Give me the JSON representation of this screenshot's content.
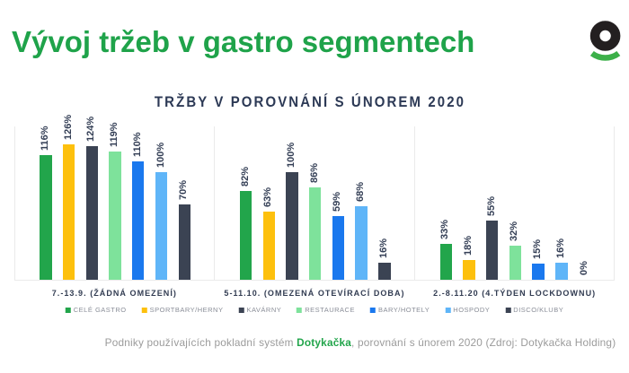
{
  "header": {
    "title": "Vývoj tržeb v gastro segmentech"
  },
  "logo": {
    "name": "dotykacka-logo",
    "ring_color": "#231f20",
    "arc_color": "#3cb049"
  },
  "chart_data": {
    "type": "bar",
    "title": "TRŽBY V POROVNÁNÍ S ÚNOREM 2020",
    "value_suffix": "%",
    "ylim": [
      0,
      142
    ],
    "grid": false,
    "legend_position": "bottom",
    "categories": [
      "7.-13.9. (ŽÁDNÁ OMEZENÍ)",
      "5-11.10. (OMEZENÁ OTEVÍRACÍ DOBA)",
      "2.-8.11.20 (4.TÝDEN LOCKDOWNU)"
    ],
    "series": [
      {
        "name": "CELÉ GASTRO",
        "color": "#22a54b",
        "values": [
          116,
          82,
          33
        ]
      },
      {
        "name": "SPORTBARY/HERNY",
        "color": "#fdc00d",
        "values": [
          126,
          63,
          18
        ]
      },
      {
        "name": "KAVÁRNY",
        "color": "#3b4353",
        "values": [
          124,
          100,
          55
        ]
      },
      {
        "name": "RESTAURACE",
        "color": "#7ee29b",
        "values": [
          119,
          86,
          32
        ]
      },
      {
        "name": "BARY/HOTELY",
        "color": "#1a78ee",
        "values": [
          110,
          59,
          15
        ]
      },
      {
        "name": "HOSPODY",
        "color": "#5fb5f8",
        "values": [
          100,
          68,
          16
        ]
      },
      {
        "name": "DISCO/KLUBY",
        "color": "#3b4353",
        "values": [
          70,
          16,
          0
        ]
      }
    ]
  },
  "footer": {
    "prefix": "Podniky používajících pokladní systém ",
    "brand": "Dotykačka",
    "suffix": ", porovnání s únorem 2020 (Zdroj: Dotykačka Holding)"
  }
}
